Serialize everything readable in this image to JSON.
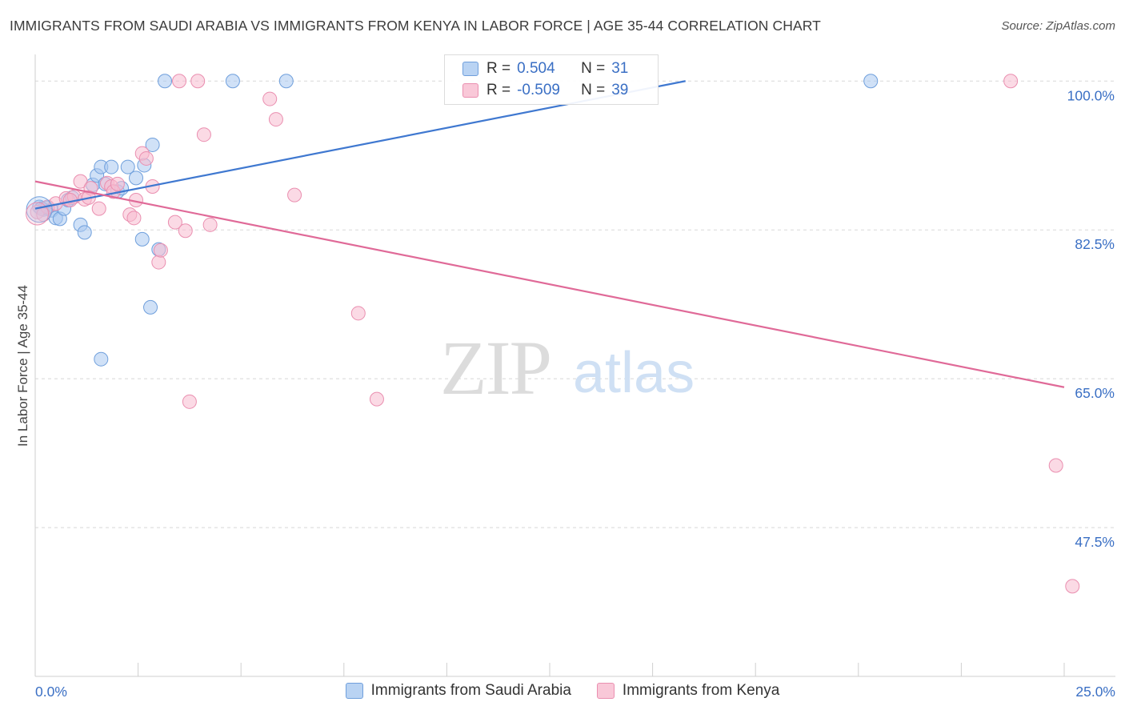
{
  "header": {
    "title": "IMMIGRANTS FROM SAUDI ARABIA VS IMMIGRANTS FROM KENYA IN LABOR FORCE | AGE 35-44 CORRELATION CHART",
    "source": "Source: ZipAtlas.com"
  },
  "legend": {
    "r_label": "R =",
    "n_label": "N =",
    "saudi": {
      "r": "0.504",
      "n": "31"
    },
    "kenya": {
      "r": "-0.509",
      "n": "39"
    }
  },
  "colors": {
    "saudi_fill": "#a9c8f0",
    "saudi_stroke": "#6f9fdc",
    "saudi_line": "#3f78d0",
    "kenya_fill": "#f7bcd0",
    "kenya_stroke": "#ea8fb0",
    "kenya_line": "#e06a98",
    "tick_label": "#3a6fc4"
  },
  "watermark": {
    "zip": "ZIP",
    "atlas": "atlas"
  },
  "chart_data": {
    "type": "scatter",
    "title": "IMMIGRANTS FROM SAUDI ARABIA VS IMMIGRANTS FROM KENYA IN LABOR FORCE | AGE 35-44 CORRELATION CHART",
    "xlabel": "",
    "ylabel": "In Labor Force | Age 35-44",
    "xlim": [
      0,
      25
    ],
    "ylim": [
      30,
      102
    ],
    "x_tick_labels": {
      "left": "0.0%",
      "right": "25.0%"
    },
    "y_ticks": [
      {
        "value": 100,
        "label": "100.0%"
      },
      {
        "value": 82.5,
        "label": "82.5%"
      },
      {
        "value": 65,
        "label": "65.0%"
      },
      {
        "value": 47.5,
        "label": "47.5%"
      }
    ],
    "series": [
      {
        "name": "Immigrants from Saudi Arabia",
        "r": 0.504,
        "n": 31,
        "trend": {
          "x": [
            0,
            15.8
          ],
          "y": [
            85.0,
            100.0
          ]
        },
        "points": [
          [
            0.1,
            85.2
          ],
          [
            0.2,
            84.9
          ],
          [
            0.3,
            85.1
          ],
          [
            0.4,
            84.8
          ],
          [
            0.5,
            83.9
          ],
          [
            0.6,
            83.8
          ],
          [
            0.7,
            85.0
          ],
          [
            0.8,
            86.0
          ],
          [
            0.9,
            86.3
          ],
          [
            1.1,
            83.1
          ],
          [
            1.2,
            82.2
          ],
          [
            1.4,
            87.8
          ],
          [
            1.5,
            88.9
          ],
          [
            1.6,
            89.9
          ],
          [
            1.7,
            87.9
          ],
          [
            1.85,
            89.9
          ],
          [
            2.0,
            87.0
          ],
          [
            2.1,
            87.4
          ],
          [
            2.25,
            89.9
          ],
          [
            2.45,
            88.6
          ],
          [
            2.65,
            90.1
          ],
          [
            2.85,
            92.5
          ],
          [
            3.15,
            100.0
          ],
          [
            4.8,
            100.0
          ],
          [
            6.1,
            100.0
          ],
          [
            20.3,
            100.0
          ],
          [
            2.6,
            81.4
          ],
          [
            3.0,
            80.2
          ],
          [
            2.8,
            73.4
          ],
          [
            1.6,
            67.3
          ],
          [
            0.15,
            85.0
          ]
        ]
      },
      {
        "name": "Immigrants from Kenya",
        "r": -0.509,
        "n": 39,
        "trend": {
          "x": [
            0,
            25
          ],
          "y": [
            88.2,
            64.0
          ]
        },
        "points": [
          [
            0.05,
            84.6
          ],
          [
            0.3,
            85.2
          ],
          [
            0.5,
            85.6
          ],
          [
            0.75,
            86.2
          ],
          [
            0.95,
            86.4
          ],
          [
            1.1,
            88.2
          ],
          [
            1.2,
            86.1
          ],
          [
            1.35,
            87.4
          ],
          [
            1.55,
            85.0
          ],
          [
            1.75,
            88.0
          ],
          [
            1.85,
            87.6
          ],
          [
            1.9,
            87.0
          ],
          [
            2.0,
            87.9
          ],
          [
            2.3,
            84.3
          ],
          [
            2.4,
            83.9
          ],
          [
            2.45,
            86.0
          ],
          [
            2.6,
            91.5
          ],
          [
            2.7,
            90.9
          ],
          [
            2.85,
            87.6
          ],
          [
            3.0,
            78.7
          ],
          [
            3.05,
            80.1
          ],
          [
            3.4,
            83.4
          ],
          [
            3.5,
            100.0
          ],
          [
            3.65,
            82.4
          ],
          [
            3.95,
            100.0
          ],
          [
            4.1,
            93.7
          ],
          [
            4.25,
            83.1
          ],
          [
            5.7,
            97.9
          ],
          [
            5.85,
            95.5
          ],
          [
            6.3,
            86.6
          ],
          [
            7.85,
            72.7
          ],
          [
            8.3,
            62.6
          ],
          [
            3.75,
            62.3
          ],
          [
            23.7,
            100.0
          ],
          [
            24.8,
            54.8
          ],
          [
            25.2,
            40.6
          ],
          [
            1.3,
            86.3
          ],
          [
            0.85,
            86.0
          ],
          [
            0.2,
            84.3
          ]
        ]
      }
    ]
  }
}
